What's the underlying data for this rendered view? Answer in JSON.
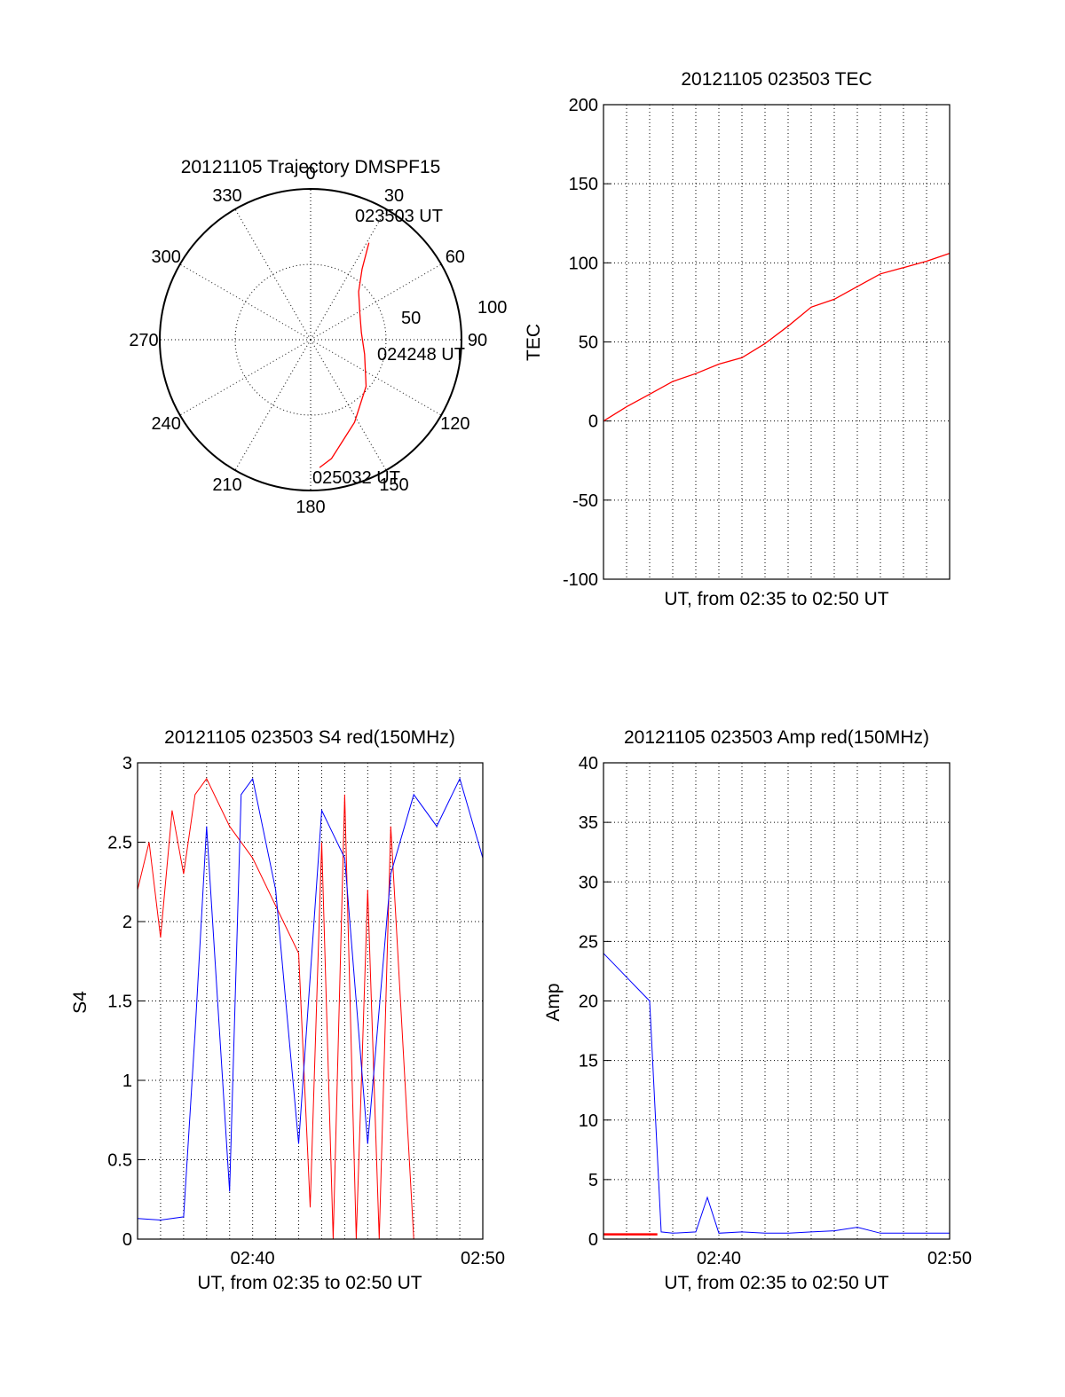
{
  "colors": {
    "red": "#ff0000",
    "blue": "#0000ff",
    "axis": "#000000"
  },
  "chart_data": [
    {
      "type": "polar",
      "title": "20121105 Trajectory DMSPF15",
      "azimuth_labels": [
        "0",
        "30",
        "60",
        "90",
        "120",
        "150",
        "180",
        "210",
        "240",
        "270",
        "300",
        "330"
      ],
      "radial_labels": [
        "50",
        "100"
      ],
      "time_labels": [
        "023503 UT",
        "024248 UT",
        "025032 UT"
      ],
      "series": [
        {
          "color": "red",
          "points": [
            [
              31,
              75
            ],
            [
              36,
              58
            ],
            [
              45,
              45
            ],
            [
              62,
              37
            ],
            [
              82,
              34
            ],
            [
              105,
              37
            ],
            [
              130,
              48
            ],
            [
              152,
              62
            ],
            [
              170,
              80
            ],
            [
              176,
              85
            ]
          ]
        }
      ]
    },
    {
      "type": "line",
      "title": "20121105 023503 TEC",
      "ylabel": "TEC",
      "xlabel": "UT, from 02:35 to 02:50 UT",
      "ylim": [
        -100,
        200
      ],
      "yticks": [
        "200",
        "150",
        "100",
        "50",
        "0",
        "-50",
        "-100"
      ],
      "xlim": [
        "02:35",
        "02:50"
      ],
      "grid": true,
      "series": [
        {
          "color": "red",
          "x": [
            "02:35",
            "02:36",
            "02:37",
            "02:38",
            "02:39",
            "02:40",
            "02:41",
            "02:42",
            "02:43",
            "02:44",
            "02:45",
            "02:46",
            "02:47",
            "02:48",
            "02:49",
            "02:50"
          ],
          "values": [
            0,
            9,
            17,
            25,
            30,
            36,
            40,
            49,
            60,
            72,
            77,
            85,
            93,
            97,
            101,
            106
          ]
        }
      ]
    },
    {
      "type": "line",
      "title": "20121105 023503 S4 red(150MHz)",
      "ylabel": "S4",
      "xlabel": "UT, from 02:35 to 02:50 UT",
      "ylim": [
        0,
        3
      ],
      "yticks": [
        "3",
        "2.5",
        "2",
        "1.5",
        "1",
        "0.5",
        "0"
      ],
      "xticks": [
        "02:40",
        "02:50"
      ],
      "xlim": [
        "02:35",
        "02:50"
      ],
      "grid": true,
      "series": [
        {
          "color": "red",
          "x": [
            "02:35",
            "02:35:30",
            "02:36",
            "02:36:30",
            "02:37",
            "02:37:30",
            "02:38",
            "02:39",
            "02:40",
            "02:41",
            "02:42",
            "02:42:30",
            "02:43",
            "02:43:30",
            "02:44",
            "02:44:30",
            "02:45",
            "02:45:30",
            "02:46",
            "02:47",
            "02:48"
          ],
          "values": [
            2.2,
            2.5,
            1.9,
            2.7,
            2.3,
            2.8,
            2.9,
            2.6,
            2.4,
            2.1,
            1.8,
            0.2,
            2.5,
            0.0,
            2.8,
            0.0,
            2.2,
            0.0,
            2.6,
            0.0,
            0.0
          ]
        },
        {
          "color": "blue",
          "x": [
            "02:35",
            "02:36",
            "02:37",
            "02:37:30",
            "02:38",
            "02:39",
            "02:39:30",
            "02:40",
            "02:41",
            "02:42",
            "02:43",
            "02:44",
            "02:45",
            "02:46",
            "02:47",
            "02:48",
            "02:49",
            "02:50"
          ],
          "values": [
            0.13,
            0.12,
            0.14,
            1.3,
            2.6,
            0.3,
            2.8,
            2.9,
            2.2,
            0.6,
            2.7,
            2.4,
            0.6,
            2.3,
            2.8,
            2.6,
            2.9,
            2.4
          ]
        }
      ]
    },
    {
      "type": "line",
      "title": "20121105 023503 Amp red(150MHz)",
      "ylabel": "Amp",
      "xlabel": "UT, from 02:35 to 02:50 UT",
      "ylim": [
        0,
        40
      ],
      "yticks": [
        "40",
        "35",
        "30",
        "25",
        "20",
        "15",
        "10",
        "5",
        "0"
      ],
      "xticks": [
        "02:40",
        "02:50"
      ],
      "xlim": [
        "02:35",
        "02:50"
      ],
      "grid": true,
      "series": [
        {
          "color": "blue",
          "x": [
            "02:35",
            "02:35:30",
            "02:36",
            "02:36:30",
            "02:37",
            "02:37:30",
            "02:38",
            "02:39",
            "02:39:30",
            "02:40",
            "02:41",
            "02:42",
            "02:43",
            "02:44",
            "02:45",
            "02:46",
            "02:47",
            "02:48",
            "02:49",
            "02:50"
          ],
          "values": [
            24,
            23,
            22,
            21,
            20,
            0.6,
            0.5,
            0.6,
            3.5,
            0.5,
            0.6,
            0.5,
            0.5,
            0.6,
            0.7,
            1.0,
            0.5,
            0.5,
            0.5,
            0.5
          ]
        },
        {
          "color": "red",
          "x": [
            "02:35",
            "02:36",
            "02:37",
            "02:37:20"
          ],
          "values": [
            0.4,
            0.4,
            0.4,
            0.4
          ]
        }
      ]
    }
  ]
}
